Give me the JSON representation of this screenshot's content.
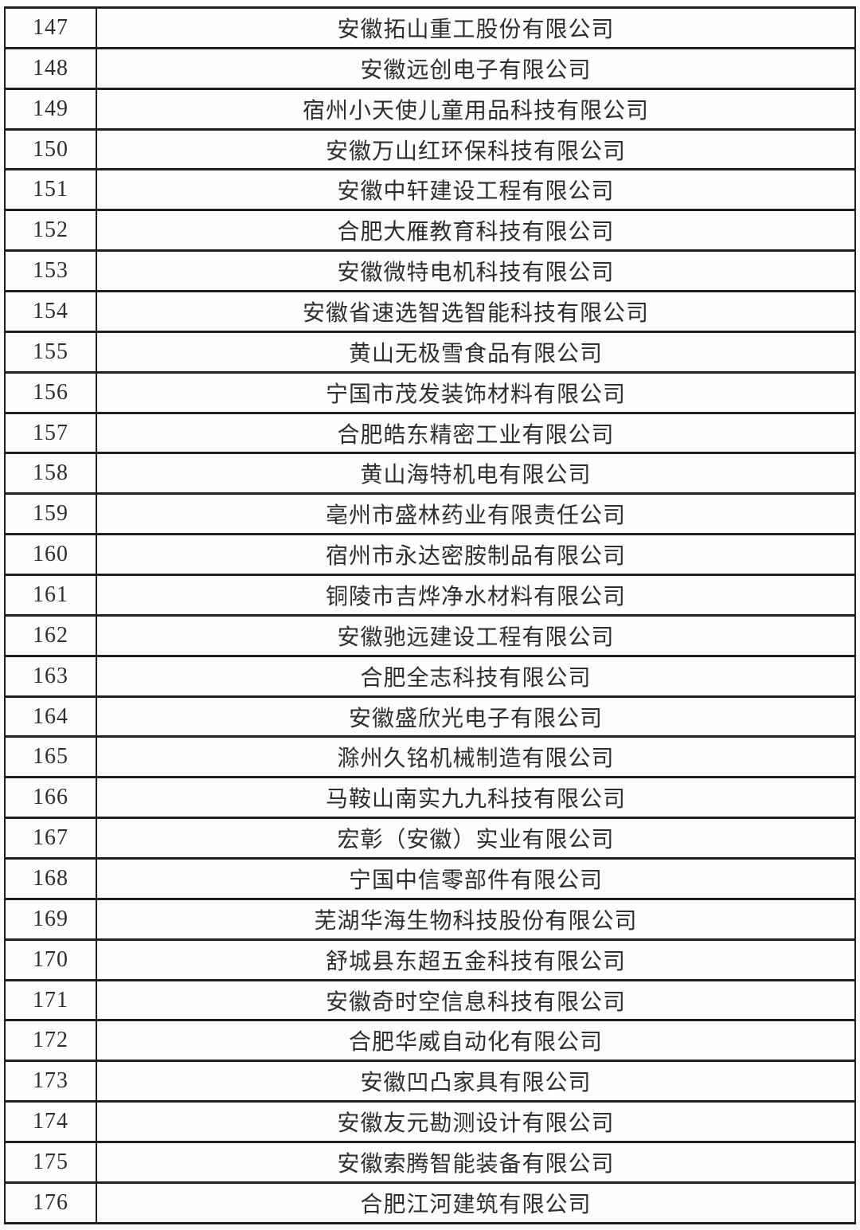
{
  "colors": {
    "border": "#1f1f1f",
    "text": "#2e2e2e",
    "background": "#fefefe"
  },
  "table": {
    "rows": [
      {
        "no": "147",
        "name": "安徽拓山重工股份有限公司"
      },
      {
        "no": "148",
        "name": "安徽远创电子有限公司"
      },
      {
        "no": "149",
        "name": "宿州小天使儿童用品科技有限公司"
      },
      {
        "no": "150",
        "name": "安徽万山红环保科技有限公司"
      },
      {
        "no": "151",
        "name": "安徽中轩建设工程有限公司"
      },
      {
        "no": "152",
        "name": "合肥大雁教育科技有限公司"
      },
      {
        "no": "153",
        "name": "安徽微特电机科技有限公司"
      },
      {
        "no": "154",
        "name": "安徽省速选智选智能科技有限公司"
      },
      {
        "no": "155",
        "name": "黄山无极雪食品有限公司"
      },
      {
        "no": "156",
        "name": "宁国市茂发装饰材料有限公司"
      },
      {
        "no": "157",
        "name": "合肥皓东精密工业有限公司"
      },
      {
        "no": "158",
        "name": "黄山海特机电有限公司"
      },
      {
        "no": "159",
        "name": "亳州市盛林药业有限责任公司"
      },
      {
        "no": "160",
        "name": "宿州市永达密胺制品有限公司"
      },
      {
        "no": "161",
        "name": "铜陵市吉烨净水材料有限公司"
      },
      {
        "no": "162",
        "name": "安徽驰远建设工程有限公司"
      },
      {
        "no": "163",
        "name": "合肥全志科技有限公司"
      },
      {
        "no": "164",
        "name": "安徽盛欣光电子有限公司"
      },
      {
        "no": "165",
        "name": "滁州久铭机械制造有限公司"
      },
      {
        "no": "166",
        "name": "马鞍山南实九九科技有限公司"
      },
      {
        "no": "167",
        "name": "宏彰（安徽）实业有限公司"
      },
      {
        "no": "168",
        "name": "宁国中信零部件有限公司"
      },
      {
        "no": "169",
        "name": "芜湖华海生物科技股份有限公司"
      },
      {
        "no": "170",
        "name": "舒城县东超五金科技有限公司"
      },
      {
        "no": "171",
        "name": "安徽奇时空信息科技有限公司"
      },
      {
        "no": "172",
        "name": "合肥华威自动化有限公司"
      },
      {
        "no": "173",
        "name": "安徽凹凸家具有限公司"
      },
      {
        "no": "174",
        "name": "安徽友元勘测设计有限公司"
      },
      {
        "no": "175",
        "name": "安徽索腾智能装备有限公司"
      },
      {
        "no": "176",
        "name": "合肥江河建筑有限公司"
      }
    ]
  }
}
